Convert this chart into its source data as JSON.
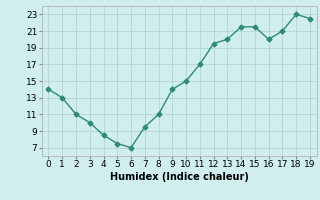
{
  "x": [
    0,
    1,
    2,
    3,
    4,
    5,
    6,
    7,
    8,
    9,
    10,
    11,
    12,
    13,
    14,
    15,
    16,
    17,
    18,
    19
  ],
  "y": [
    14,
    13,
    11,
    10,
    8.5,
    7.5,
    7,
    9.5,
    11,
    14,
    15,
    17,
    19.5,
    20,
    21.5,
    21.5,
    20,
    21,
    23,
    22.5
  ],
  "line_color": "#2e8b74",
  "background_color": "#d0eeee",
  "grid_color": "#b8d8d8",
  "xlabel": "Humidex (Indice chaleur)",
  "xlim": [
    -0.5,
    19.5
  ],
  "ylim": [
    6,
    24
  ],
  "yticks": [
    7,
    9,
    11,
    13,
    15,
    17,
    19,
    21,
    23
  ],
  "xticks": [
    0,
    1,
    2,
    3,
    4,
    5,
    6,
    7,
    8,
    9,
    10,
    11,
    12,
    13,
    14,
    15,
    16,
    17,
    18,
    19
  ],
  "marker": "D",
  "marker_size": 2.5,
  "line_width": 1.0,
  "xlabel_fontsize": 7,
  "tick_fontsize": 6.5
}
